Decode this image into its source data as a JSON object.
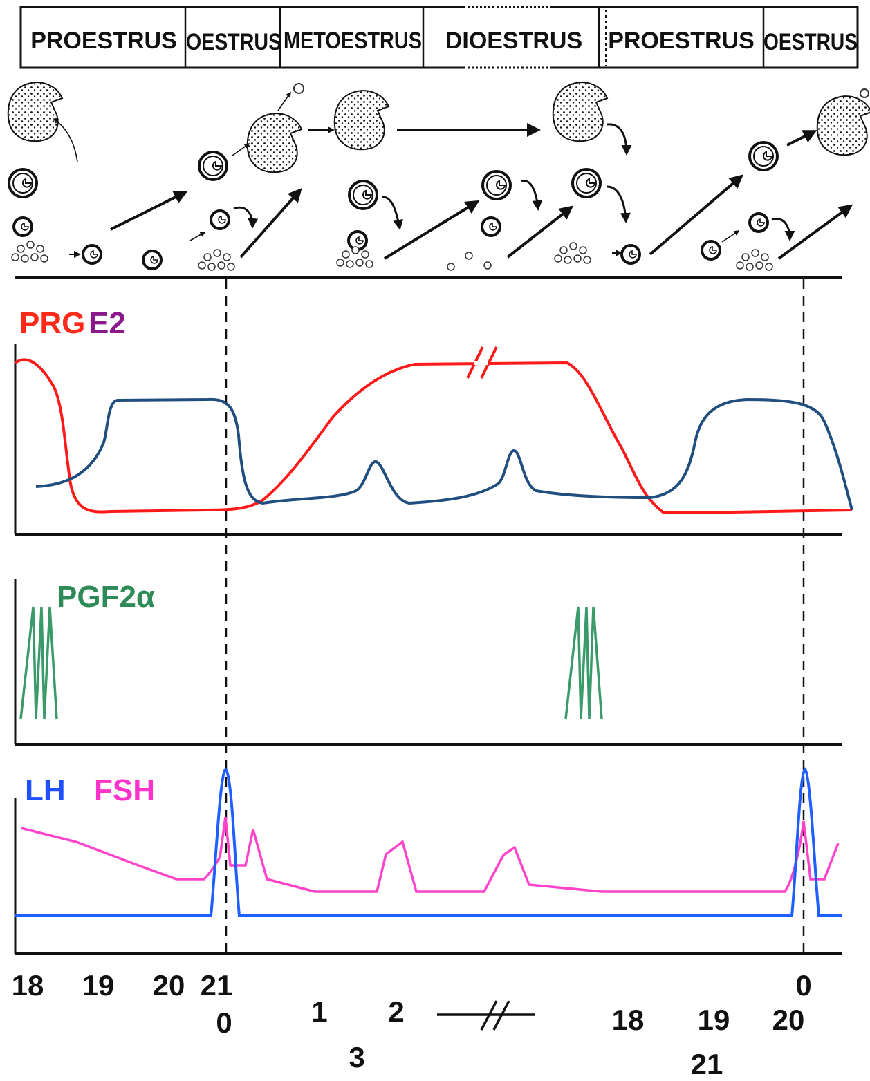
{
  "phases": [
    {
      "label": "PROESTRUS"
    },
    {
      "label": "OESTRUS"
    },
    {
      "label": "METOESTRUS"
    },
    {
      "label": "DIOESTRUS"
    },
    {
      "label": "PROESTRUS"
    },
    {
      "label": "OESTRUS"
    }
  ],
  "hormone_panels": {
    "steroids": {
      "labels": [
        {
          "text": "PRG",
          "color": "#ff2a1a"
        },
        {
          "text": "E2",
          "color": "#8a1a8c"
        }
      ]
    },
    "prostaglandin": {
      "label": "PGF2α",
      "color": "#2e8b57"
    },
    "gonadotropins": {
      "labels": [
        {
          "text": "LH",
          "color": "#1f4fff"
        },
        {
          "text": "FSH",
          "color": "#ff33cc"
        }
      ]
    }
  },
  "curve_colors": {
    "PRG": "#ff1a1a",
    "E2": "#1f4e7f",
    "PGF2a": "#3a9a6a",
    "LH": "#1f5fff",
    "FSH": "#ff44cc"
  },
  "day_labels": [
    "18",
    "19",
    "20",
    "21",
    "0",
    "1",
    "2",
    "3",
    "18",
    "19",
    "20",
    "21",
    "0",
    "0"
  ],
  "icons": [
    "corpus-luteum-icon",
    "follicle-icon",
    "antral-follicle-icon",
    "growth-arrow-icon",
    "break-mark-icon",
    "ovulation-line-icon"
  ]
}
